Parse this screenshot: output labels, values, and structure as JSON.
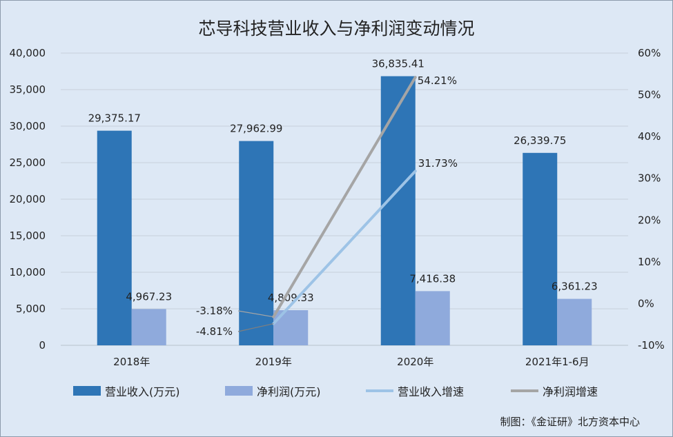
{
  "chart_data": {
    "type": "bar",
    "title": "芯导科技营业收入与净利润变动情况",
    "categories": [
      "2018年",
      "2019年",
      "2020年",
      "2021年1-6月"
    ],
    "y_left": {
      "min": 0,
      "max": 40000,
      "step": 5000,
      "ticks": [
        "0",
        "5,000",
        "10,000",
        "15,000",
        "20,000",
        "25,000",
        "30,000",
        "35,000",
        "40,000"
      ]
    },
    "y_right": {
      "min": -10,
      "max": 60,
      "step": 10,
      "ticks": [
        "-10%",
        "0%",
        "10%",
        "20%",
        "30%",
        "40%",
        "50%",
        "60%"
      ]
    },
    "bar_series": [
      {
        "name": "营业收入(万元)",
        "color": "#2e75b6",
        "values": [
          29375.17,
          27962.99,
          36835.41,
          26339.75
        ],
        "labels": [
          "29,375.17",
          "27,962.99",
          "36,835.41",
          "26,339.75"
        ]
      },
      {
        "name": "净利润(万元)",
        "color": "#8faadc",
        "values": [
          4967.23,
          4809.33,
          7416.38,
          6361.23
        ],
        "labels": [
          "4,967.23",
          "4,809.33",
          "7,416.38",
          "6,361.23"
        ]
      }
    ],
    "line_series": [
      {
        "name": "营业收入增速",
        "color": "#9dc3e6",
        "categories": [
          "2019年",
          "2020年"
        ],
        "values": [
          -4.81,
          31.73
        ],
        "labels": [
          "-4.81%",
          "31.73%"
        ]
      },
      {
        "name": "净利润增速",
        "color": "#a5a5a5",
        "categories": [
          "2019年",
          "2020年"
        ],
        "values": [
          -3.18,
          54.21
        ],
        "labels": [
          "-3.18%",
          "54.21%"
        ]
      }
    ],
    "grid": true,
    "legend_position": "bottom"
  },
  "legend": [
    {
      "label": "营业收入(万元)",
      "kind": "box",
      "color": "#2e75b6"
    },
    {
      "label": "净利润(万元)",
      "kind": "box",
      "color": "#8faadc"
    },
    {
      "label": "营业收入增速",
      "kind": "line",
      "color": "#9dc3e6"
    },
    {
      "label": "净利润增速",
      "kind": "line",
      "color": "#a5a5a5"
    }
  ],
  "source": "制图：《金证研》北方资本中心"
}
